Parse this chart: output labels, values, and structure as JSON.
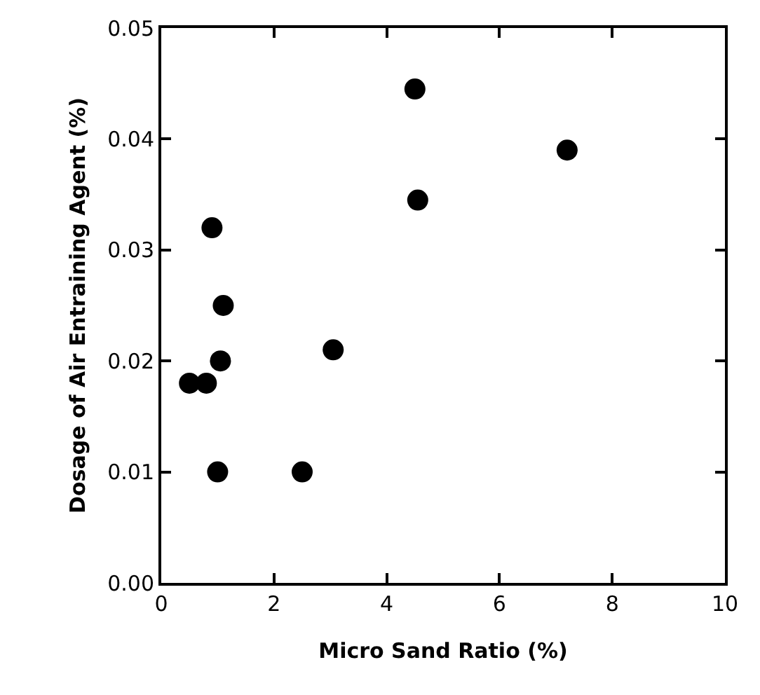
{
  "chart_data": {
    "type": "scatter",
    "xlabel": "Micro Sand Ratio (%)",
    "ylabel": "Dosage of Air Entraining Agent (%)",
    "x": [
      0.9,
      1.1,
      1.05,
      0.5,
      0.8,
      1.0,
      2.5,
      3.05,
      4.5,
      4.55,
      7.2
    ],
    "series": [
      {
        "color": "#000000",
        "values": [
          0.032,
          0.025,
          0.02,
          0.018,
          0.018,
          0.01,
          0.01,
          0.021,
          0.0445,
          0.0345,
          0.039
        ]
      }
    ],
    "xlim": [
      0,
      10
    ],
    "xticks": [
      0,
      2,
      4,
      6,
      8,
      10
    ],
    "ylim": [
      0,
      0.05
    ],
    "yticks": [
      {
        "value": 0,
        "label": "0.00"
      },
      {
        "value": 0.01,
        "label": "0.01"
      },
      {
        "value": 0.02,
        "label": "0.02"
      },
      {
        "value": 0.03,
        "label": "0.03"
      },
      {
        "value": 0.04,
        "label": "0.04"
      },
      {
        "value": 0.05,
        "label": "0.05"
      }
    ],
    "marker": "circle"
  }
}
